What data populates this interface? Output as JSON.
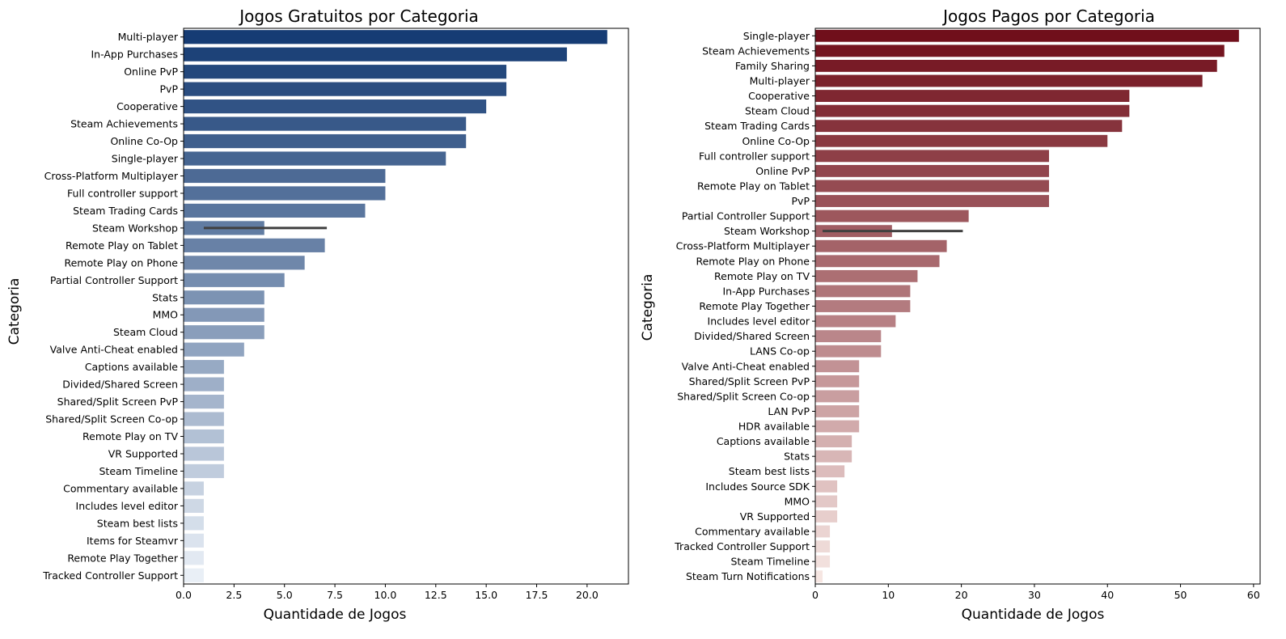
{
  "chart_data": [
    {
      "type": "bar",
      "orientation": "horizontal",
      "title": "Jogos Gratuitos por Categoria",
      "xlabel": "Quantidade de Jogos",
      "ylabel": "Categoria",
      "xlim": [
        0,
        22.05
      ],
      "xticks": [
        "0.0",
        "2.5",
        "5.0",
        "7.5",
        "10.0",
        "12.5",
        "15.0",
        "17.5",
        "20.0"
      ],
      "xtick_values": [
        0,
        2.5,
        5,
        7.5,
        10,
        12.5,
        15,
        17.5,
        20
      ],
      "grid": false,
      "palette": "Blues (dark to light)",
      "color_dark": "#08306b",
      "color_light": "#f7fbff",
      "categories": [
        "Multi-player",
        "In-App Purchases",
        "Online PvP",
        "PvP",
        "Cooperative",
        "Steam Achievements",
        "Online Co-Op",
        "Single-player",
        "Cross-Platform Multiplayer",
        "Full controller support",
        "Steam Trading Cards",
        "Steam Workshop",
        "Remote Play on Tablet",
        "Remote Play on Phone",
        "Partial Controller Support",
        "Stats",
        "MMO",
        "Steam Cloud",
        "Valve Anti-Cheat enabled",
        "Captions available",
        "Divided/Shared Screen",
        "Shared/Split Screen PvP",
        "Shared/Split Screen Co-op",
        "Remote Play on TV",
        "VR Supported",
        "Steam Timeline",
        "Commentary available",
        "Includes level editor",
        "Steam best lists",
        "Items for Steamvr",
        "Remote Play Together",
        "Tracked Controller Support"
      ],
      "values": [
        21,
        19,
        16,
        16,
        15,
        14,
        14,
        13,
        10,
        10,
        9,
        4,
        7,
        6,
        5,
        4,
        4,
        4,
        3,
        2,
        2,
        2,
        2,
        2,
        2,
        2,
        1,
        1,
        1,
        1,
        1,
        1
      ],
      "error_bars": [
        {
          "category": "Steam Workshop",
          "low": 1,
          "high": 7.1
        }
      ]
    },
    {
      "type": "bar",
      "orientation": "horizontal",
      "title": "Jogos Pagos por Categoria",
      "xlabel": "Quantidade de Jogos",
      "ylabel": "Categoria",
      "xlim": [
        0,
        60.9
      ],
      "xticks": [
        "0",
        "10",
        "20",
        "30",
        "40",
        "50",
        "60"
      ],
      "xtick_values": [
        0,
        10,
        20,
        30,
        40,
        50,
        60
      ],
      "grid": false,
      "palette": "Reds (dark to light)",
      "color_dark": "#67000d",
      "color_light": "#fff5f0",
      "categories": [
        "Single-player",
        "Steam Achievements",
        "Family Sharing",
        "Multi-player",
        "Cooperative",
        "Steam Cloud",
        "Steam Trading Cards",
        "Online Co-Op",
        "Full controller support",
        "Online PvP",
        "Remote Play on Tablet",
        "PvP",
        "Partial Controller Support",
        "Steam Workshop",
        "Cross-Platform Multiplayer",
        "Remote Play on Phone",
        "Remote Play on TV",
        "In-App Purchases",
        "Remote Play Together",
        "Includes level editor",
        "Divided/Shared Screen",
        "LANS Co-op",
        "Valve Anti-Cheat enabled",
        "Shared/Split Screen PvP",
        "Shared/Split Screen Co-op",
        "LAN PvP",
        "HDR available",
        "Captions available",
        "Stats",
        "Steam best lists",
        "Includes Source SDK",
        "MMO",
        "VR Supported",
        "Commentary available",
        "Tracked Controller Support",
        "Steam Timeline",
        "Steam Turn Notifications"
      ],
      "values": [
        58,
        56,
        55,
        53,
        43,
        43,
        42,
        40,
        32,
        32,
        32,
        32,
        21,
        10.5,
        18,
        17,
        14,
        13,
        13,
        11,
        9,
        9,
        6,
        6,
        6,
        6,
        6,
        5,
        5,
        4,
        3,
        3,
        3,
        2,
        2,
        2,
        1
      ],
      "error_bars": [
        {
          "category": "Steam Workshop",
          "low": 1,
          "high": 20.2
        }
      ]
    }
  ]
}
